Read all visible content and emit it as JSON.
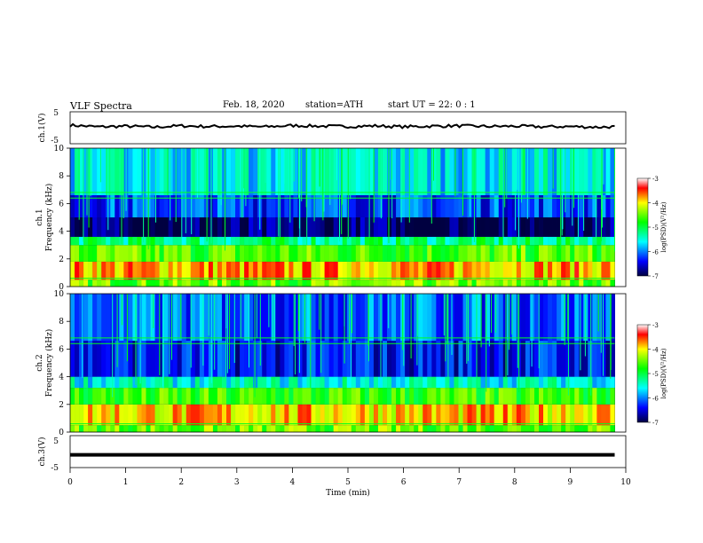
{
  "header": {
    "title": "VLF  Spectra",
    "date": "Feb. 18, 2020",
    "station": "station=ATH",
    "start": "start  UT  =    22: 0   : 1"
  },
  "chart_data": [
    {
      "type": "line",
      "name": "ch1-waveform",
      "ylabel": "ch.1(V)",
      "ylim": [
        -5,
        5
      ],
      "yticks": [
        "5",
        "-5"
      ],
      "x": [
        0,
        0.5,
        1,
        1.5,
        2,
        2.5,
        3,
        3.5,
        4,
        4.5,
        5,
        5.5,
        6,
        6.5,
        7,
        7.5,
        8,
        8.5,
        9,
        9.5,
        9.8
      ],
      "values": [
        0.8,
        0.3,
        0.5,
        0.2,
        0.6,
        0.4,
        0.5,
        0.3,
        0.7,
        0.5,
        0.4,
        0.6,
        0.3,
        0.5,
        0.6,
        0.4,
        0.5,
        0.3,
        0.4,
        0.2,
        0.3
      ]
    },
    {
      "type": "heatmap",
      "name": "ch1-spectrogram",
      "ylabel": "Frequency  (kHz)",
      "panel_label": "ch.1",
      "xlim": [
        0,
        10
      ],
      "ylim": [
        0,
        10
      ],
      "yticks": [
        "0",
        "2",
        "4",
        "6",
        "8",
        "10"
      ],
      "colorbar": {
        "label": "log(PSD)(V²/Hz)",
        "range": [
          -7,
          -3
        ],
        "ticks": [
          "-3",
          "-4",
          "-5",
          "-6",
          "-7"
        ]
      },
      "bands": [
        {
          "freq_khz": [
            0,
            0.5
          ],
          "log_psd": -4.5
        },
        {
          "freq_khz": [
            0.5,
            1.8
          ],
          "log_psd": -3.8
        },
        {
          "freq_khz": [
            1.8,
            3.0
          ],
          "log_psd": -4.6
        },
        {
          "freq_khz": [
            3.0,
            3.6
          ],
          "log_psd": -5.2
        },
        {
          "freq_khz": [
            3.6,
            5.0
          ],
          "log_psd": -6.9
        },
        {
          "freq_khz": [
            5.0,
            6.6
          ],
          "log_psd": -6.2
        },
        {
          "freq_khz": [
            6.6,
            10
          ],
          "log_psd": -5.6
        }
      ]
    },
    {
      "type": "heatmap",
      "name": "ch2-spectrogram",
      "ylabel": "Frequency  (kHz)",
      "panel_label": "ch.2",
      "xlim": [
        0,
        10
      ],
      "ylim": [
        0,
        10
      ],
      "yticks": [
        "0",
        "2",
        "4",
        "6",
        "8",
        "10"
      ],
      "colorbar": {
        "label": "log(PSD)(V²/Hz)",
        "range": [
          -7,
          -3
        ],
        "ticks": [
          "-3",
          "-4",
          "-5",
          "-6",
          "-7"
        ]
      },
      "bands": [
        {
          "freq_khz": [
            0,
            0.5
          ],
          "log_psd": -4.5
        },
        {
          "freq_khz": [
            0.5,
            2.0
          ],
          "log_psd": -3.9
        },
        {
          "freq_khz": [
            2.0,
            3.2
          ],
          "log_psd": -4.7
        },
        {
          "freq_khz": [
            3.2,
            4.0
          ],
          "log_psd": -5.5
        },
        {
          "freq_khz": [
            4.0,
            6.6
          ],
          "log_psd": -6.4
        },
        {
          "freq_khz": [
            6.6,
            10
          ],
          "log_psd": -6.1
        }
      ]
    },
    {
      "type": "line",
      "name": "ch3-waveform",
      "ylabel": "ch.3(V)",
      "xlabel": "Time  (min)",
      "xlim": [
        0,
        10
      ],
      "xticks": [
        "0",
        "1",
        "2",
        "3",
        "4",
        "5",
        "6",
        "7",
        "8",
        "9",
        "10"
      ],
      "ylim": [
        -5,
        5
      ],
      "yticks": [
        "5",
        "-5"
      ],
      "x": [
        0,
        9.8
      ],
      "values": [
        -1,
        -1
      ]
    }
  ]
}
